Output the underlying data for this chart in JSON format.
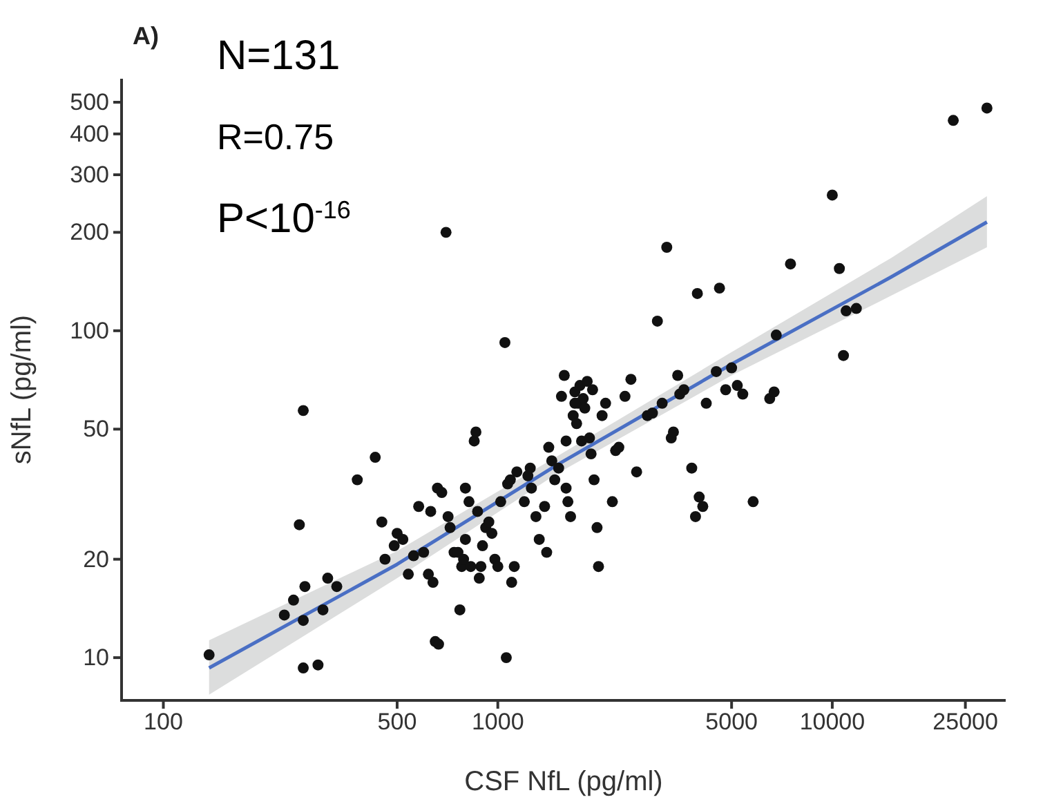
{
  "chart_data": {
    "type": "scatter",
    "title": "A)",
    "xlabel": "CSF NfL (pg/ml)",
    "ylabel": "sNfL (pg/ml)",
    "annotations": [
      "N=131",
      "R=0.75",
      "P<10$^{-16}$"
    ],
    "log": "xy",
    "marker": "circle",
    "grid": false,
    "xlim": [
      75,
      33000
    ],
    "xticks": [
      100,
      500,
      1000,
      5000,
      10000,
      25000
    ],
    "ylim": [
      7.4,
      590
    ],
    "yticks": [
      10,
      20,
      50,
      100,
      200,
      300,
      400,
      500
    ],
    "series": [
      {
        "color": "#111111",
        "x": [
          137,
          230,
          245,
          255,
          262,
          262,
          265,
          262,
          290,
          300,
          310,
          330,
          380,
          430,
          450,
          460,
          490,
          500,
          520,
          540,
          560,
          580,
          600,
          620,
          640,
          650,
          665,
          660,
          680,
          700,
          710,
          720,
          740,
          760,
          770,
          780,
          790,
          800,
          820,
          830,
          850,
          860,
          870,
          880,
          890,
          900,
          920,
          940,
          960,
          980,
          1000,
          1020,
          1050,
          1060,
          1070,
          1090,
          1100,
          1120,
          1140,
          1200,
          1230,
          1260,
          1300,
          1330,
          1380,
          1400,
          1420,
          1450,
          1480,
          1520,
          1550,
          1580,
          1600,
          1620,
          1650,
          1680,
          1700,
          1720,
          1740,
          1760,
          1780,
          1800,
          1820,
          1850,
          1880,
          1900,
          1920,
          1940,
          1980,
          2000,
          2050,
          2100,
          2200,
          2250,
          2300,
          2400,
          2500,
          2600,
          2800,
          3000,
          3100,
          3200,
          3300,
          3350,
          3450,
          3500,
          3600,
          3800,
          3900,
          3950,
          4000,
          4100,
          4200,
          4500,
          4600,
          4800,
          5000,
          5200,
          5400,
          5800,
          6500,
          6700,
          6800,
          7500,
          10000,
          10500,
          10800,
          11000,
          11800,
          23000,
          29000,
          1250,
          1700,
          800,
          1600,
          2900,
          630
        ],
        "values": [
          10.2,
          13.5,
          15,
          25.5,
          57,
          13,
          16.5,
          9.3,
          9.5,
          14,
          17.5,
          16.5,
          35,
          41,
          26,
          20,
          22,
          24,
          23,
          18,
          20.5,
          29,
          21,
          18,
          17,
          11.2,
          11,
          33,
          32,
          200,
          27,
          25,
          21,
          21,
          14,
          19,
          20,
          23,
          30,
          19,
          46,
          49,
          28,
          17.5,
          19,
          22,
          25,
          26,
          24,
          20,
          19,
          30,
          92,
          10,
          34,
          35,
          17,
          19,
          37,
          30,
          36,
          33,
          27,
          23,
          29,
          21,
          44,
          40,
          35,
          38,
          63,
          73,
          33,
          30,
          27,
          55,
          65,
          52,
          60,
          68,
          46,
          62,
          58,
          70,
          47,
          42,
          66,
          35,
          25,
          19,
          55,
          60,
          30,
          43,
          44,
          63,
          71,
          37,
          55,
          107,
          60,
          180,
          47,
          49,
          73,
          64,
          66,
          38,
          27,
          130,
          31,
          29,
          60,
          75,
          135,
          66,
          77,
          68,
          64,
          30,
          62,
          65,
          97,
          160,
          260,
          155,
          84,
          115,
          117,
          440,
          480,
          38,
          60,
          33,
          46,
          56,
          28
        ]
      },
      {
        "type": "line",
        "marker": "none",
        "color": "#4a6fc4",
        "x": [
          137,
          500,
          1500,
          5000,
          15000,
          29000
        ],
        "values": [
          9.3,
          19.3,
          38.8,
          79,
          146,
          215
        ],
        "lower": [
          7.7,
          17.5,
          36.5,
          73,
          128,
          180
        ],
        "upper": [
          11.3,
          21.2,
          41.2,
          86,
          167,
          258
        ]
      }
    ]
  }
}
